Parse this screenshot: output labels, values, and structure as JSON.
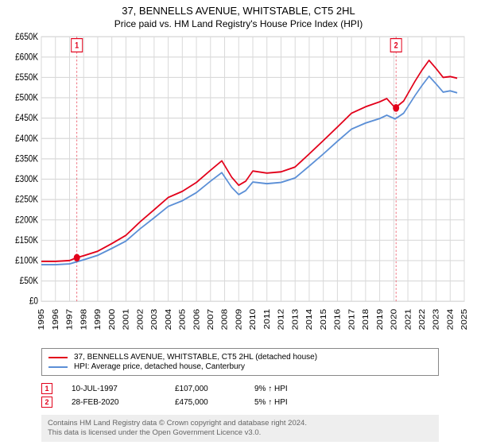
{
  "title_line1": "37, BENNELLS AVENUE, WHITSTABLE, CT5 2HL",
  "title_line2": "Price paid vs. HM Land Registry's House Price Index (HPI)",
  "title1_fontsize": 13,
  "title2_fontsize": 12,
  "chart": {
    "type": "line",
    "background_color": "#ffffff",
    "grid_color": "#d9d9d9",
    "axis_color": "#000000",
    "x": {
      "min": 1995,
      "max": 2025,
      "ticks": [
        1995,
        1996,
        1997,
        1998,
        1999,
        2000,
        2001,
        2002,
        2003,
        2004,
        2005,
        2006,
        2007,
        2008,
        2009,
        2010,
        2011,
        2012,
        2013,
        2014,
        2015,
        2016,
        2017,
        2018,
        2019,
        2020,
        2021,
        2022,
        2023,
        2024,
        2025
      ],
      "tick_fontsize": 10,
      "tick_rotation": -90
    },
    "y": {
      "min": 0,
      "max": 650000,
      "tick_step": 50000,
      "tick_labels": [
        "£0",
        "£50K",
        "£100K",
        "£150K",
        "£200K",
        "£250K",
        "£300K",
        "£350K",
        "£400K",
        "£450K",
        "£500K",
        "£550K",
        "£600K",
        "£650K"
      ],
      "tick_fontsize": 10
    },
    "series": [
      {
        "name": "37, BENNELLS AVENUE, WHITSTABLE, CT5 2HL (detached house)",
        "color": "#e2001a",
        "line_width": 1.6,
        "points": [
          [
            1995.0,
            98000
          ],
          [
            1996.0,
            98000
          ],
          [
            1997.0,
            100000
          ],
          [
            1997.5,
            107000
          ],
          [
            1998.0,
            112000
          ],
          [
            1999.0,
            123000
          ],
          [
            2000.0,
            142000
          ],
          [
            2001.0,
            162000
          ],
          [
            2002.0,
            195000
          ],
          [
            2003.0,
            225000
          ],
          [
            2004.0,
            255000
          ],
          [
            2005.0,
            270000
          ],
          [
            2006.0,
            292000
          ],
          [
            2007.0,
            322000
          ],
          [
            2007.8,
            345000
          ],
          [
            2008.5,
            305000
          ],
          [
            2009.0,
            285000
          ],
          [
            2009.5,
            295000
          ],
          [
            2010.0,
            320000
          ],
          [
            2011.0,
            315000
          ],
          [
            2012.0,
            318000
          ],
          [
            2013.0,
            330000
          ],
          [
            2014.0,
            362000
          ],
          [
            2015.0,
            395000
          ],
          [
            2016.0,
            428000
          ],
          [
            2017.0,
            462000
          ],
          [
            2018.0,
            478000
          ],
          [
            2019.0,
            490000
          ],
          [
            2019.5,
            498000
          ],
          [
            2020.1,
            475000
          ],
          [
            2020.7,
            492000
          ],
          [
            2021.5,
            540000
          ],
          [
            2022.0,
            568000
          ],
          [
            2022.5,
            592000
          ],
          [
            2023.0,
            572000
          ],
          [
            2023.5,
            550000
          ],
          [
            2024.0,
            552000
          ],
          [
            2024.5,
            548000
          ]
        ]
      },
      {
        "name": "HPI: Average price, detached house, Canterbury",
        "color": "#5b8fd6",
        "line_width": 1.6,
        "points": [
          [
            1995.0,
            90000
          ],
          [
            1996.0,
            90000
          ],
          [
            1997.0,
            92000
          ],
          [
            1998.0,
            102000
          ],
          [
            1999.0,
            113000
          ],
          [
            2000.0,
            130000
          ],
          [
            2001.0,
            148000
          ],
          [
            2002.0,
            178000
          ],
          [
            2003.0,
            205000
          ],
          [
            2004.0,
            233000
          ],
          [
            2005.0,
            247000
          ],
          [
            2006.0,
            267000
          ],
          [
            2007.0,
            295000
          ],
          [
            2007.8,
            316000
          ],
          [
            2008.5,
            280000
          ],
          [
            2009.0,
            262000
          ],
          [
            2009.5,
            272000
          ],
          [
            2010.0,
            293000
          ],
          [
            2011.0,
            289000
          ],
          [
            2012.0,
            292000
          ],
          [
            2013.0,
            303000
          ],
          [
            2014.0,
            332000
          ],
          [
            2015.0,
            362000
          ],
          [
            2016.0,
            393000
          ],
          [
            2017.0,
            423000
          ],
          [
            2018.0,
            438000
          ],
          [
            2019.0,
            449000
          ],
          [
            2019.5,
            457000
          ],
          [
            2020.1,
            448000
          ],
          [
            2020.7,
            462000
          ],
          [
            2021.5,
            505000
          ],
          [
            2022.0,
            530000
          ],
          [
            2022.5,
            553000
          ],
          [
            2023.0,
            534000
          ],
          [
            2023.5,
            514000
          ],
          [
            2024.0,
            517000
          ],
          [
            2024.5,
            512000
          ]
        ]
      }
    ],
    "sale_markers": [
      {
        "n": "1",
        "x": 1997.52,
        "y": 107000,
        "color": "#e2001a",
        "guide_color": "#e2001a"
      },
      {
        "n": "2",
        "x": 2020.16,
        "y": 475000,
        "color": "#e2001a",
        "guide_color": "#e2001a"
      }
    ],
    "marker_radius": 4,
    "marker_box": {
      "w": 14,
      "h": 14,
      "fontsize": 9,
      "border": 1
    }
  },
  "legend": {
    "border_color": "#888888",
    "fontsize": 10,
    "items": [
      {
        "color": "#e2001a",
        "label": "37, BENNELLS AVENUE, WHITSTABLE, CT5 2HL (detached house)"
      },
      {
        "color": "#5b8fd6",
        "label": "HPI: Average price, detached house, Canterbury"
      }
    ]
  },
  "sales_table": {
    "fontsize": 10,
    "rows": [
      {
        "n": "1",
        "color": "#e2001a",
        "date": "10-JUL-1997",
        "price": "£107,000",
        "note": "9% ↑ HPI"
      },
      {
        "n": "2",
        "color": "#e2001a",
        "date": "28-FEB-2020",
        "price": "£475,000",
        "note": "5% ↑ HPI"
      }
    ]
  },
  "footer": {
    "background": "#eeeeee",
    "text_color": "#666666",
    "fontsize": 9.5,
    "line1": "Contains HM Land Registry data © Crown copyright and database right 2024.",
    "line2": "This data is licensed under the Open Government Licence v3.0."
  }
}
